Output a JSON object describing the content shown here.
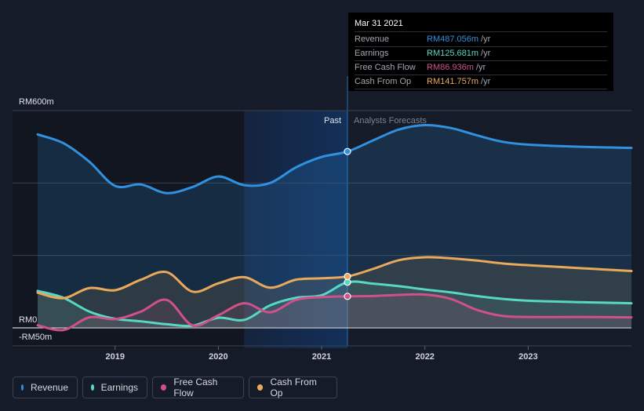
{
  "colors": {
    "background": "#151b28",
    "revenue": "#2f91e0",
    "earnings": "#57d8c2",
    "free_cash_flow": "#d0508a",
    "cash_from_op": "#e8a95a"
  },
  "tooltip": {
    "date": "Mar 31 2021",
    "rows": [
      {
        "label": "Revenue",
        "value": "RM487.056m",
        "unit": "/yr",
        "color": "#2f91e0"
      },
      {
        "label": "Earnings",
        "value": "RM125.681m",
        "unit": "/yr",
        "color": "#57d8c2"
      },
      {
        "label": "Free Cash Flow",
        "value": "RM86.936m",
        "unit": "/yr",
        "color": "#d0508a"
      },
      {
        "label": "Cash From Op",
        "value": "RM141.757m",
        "unit": "/yr",
        "color": "#e8a95a"
      }
    ]
  },
  "labels": {
    "past": "Past",
    "forecast": "Analysts Forecasts"
  },
  "legend": [
    {
      "label": "Revenue",
      "color": "#2f91e0",
      "icon": "revenue-dot"
    },
    {
      "label": "Earnings",
      "color": "#57d8c2",
      "icon": "earnings-dot"
    },
    {
      "label": "Free Cash Flow",
      "color": "#d0508a",
      "icon": "free-cash-flow-dot"
    },
    {
      "label": "Cash From Op",
      "color": "#e8a95a",
      "icon": "cash-from-op-dot"
    }
  ],
  "chart_data": {
    "type": "area",
    "y_unit": "RM m",
    "ylim": [
      -50,
      600
    ],
    "y_tick_labels": [
      {
        "value": 600,
        "label": "RM600m"
      },
      {
        "value": 0,
        "label": "RM0"
      },
      {
        "value": -50,
        "label": "-RM50m"
      }
    ],
    "xlim": [
      2018.25,
      2024.0
    ],
    "x_tick_labels": [
      {
        "value": 2019,
        "label": "2019"
      },
      {
        "value": 2020,
        "label": "2020"
      },
      {
        "value": 2021,
        "label": "2021"
      },
      {
        "value": 2022,
        "label": "2022"
      },
      {
        "value": 2023,
        "label": "2023"
      }
    ],
    "past_end": 2021.25,
    "highlight_start": 2020.25,
    "grid": true,
    "series": [
      {
        "name": "Revenue",
        "color": "#2f91e0",
        "points": [
          [
            2018.25,
            534
          ],
          [
            2018.5,
            510
          ],
          [
            2018.75,
            459
          ],
          [
            2019.0,
            392
          ],
          [
            2019.25,
            396
          ],
          [
            2019.5,
            372
          ],
          [
            2019.75,
            389
          ],
          [
            2020.0,
            418
          ],
          [
            2020.25,
            394
          ],
          [
            2020.5,
            400
          ],
          [
            2020.75,
            443
          ],
          [
            2021.0,
            472
          ],
          [
            2021.25,
            487
          ],
          [
            2021.5,
            518
          ],
          [
            2021.75,
            548
          ],
          [
            2022.0,
            560
          ],
          [
            2022.25,
            552
          ],
          [
            2022.5,
            532
          ],
          [
            2022.75,
            514
          ],
          [
            2023.0,
            506
          ],
          [
            2023.5,
            500
          ],
          [
            2024.0,
            497
          ]
        ]
      },
      {
        "name": "Earnings",
        "color": "#57d8c2",
        "points": [
          [
            2018.25,
            102
          ],
          [
            2018.5,
            83
          ],
          [
            2018.75,
            45
          ],
          [
            2019.0,
            25
          ],
          [
            2019.25,
            18
          ],
          [
            2019.5,
            10
          ],
          [
            2019.75,
            6
          ],
          [
            2020.0,
            28
          ],
          [
            2020.25,
            22
          ],
          [
            2020.5,
            62
          ],
          [
            2020.75,
            83
          ],
          [
            2021.0,
            90
          ],
          [
            2021.25,
            126
          ],
          [
            2021.5,
            122
          ],
          [
            2021.75,
            115
          ],
          [
            2022.0,
            106
          ],
          [
            2022.25,
            98
          ],
          [
            2022.5,
            88
          ],
          [
            2022.75,
            80
          ],
          [
            2023.0,
            75
          ],
          [
            2023.5,
            71
          ],
          [
            2024.0,
            68
          ]
        ]
      },
      {
        "name": "Free Cash Flow",
        "color": "#d0508a",
        "points": [
          [
            2018.25,
            7
          ],
          [
            2018.5,
            -6
          ],
          [
            2018.75,
            29
          ],
          [
            2019.0,
            24
          ],
          [
            2019.25,
            45
          ],
          [
            2019.5,
            77
          ],
          [
            2019.75,
            7
          ],
          [
            2020.0,
            35
          ],
          [
            2020.25,
            68
          ],
          [
            2020.5,
            43
          ],
          [
            2020.75,
            77
          ],
          [
            2021.0,
            85
          ],
          [
            2021.25,
            87
          ],
          [
            2021.5,
            88
          ],
          [
            2021.75,
            91
          ],
          [
            2022.0,
            92
          ],
          [
            2022.25,
            80
          ],
          [
            2022.5,
            50
          ],
          [
            2022.75,
            33
          ],
          [
            2023.0,
            30
          ],
          [
            2023.5,
            30
          ],
          [
            2024.0,
            29
          ]
        ]
      },
      {
        "name": "Cash From Op",
        "color": "#e8a95a",
        "points": [
          [
            2018.25,
            97
          ],
          [
            2018.5,
            82
          ],
          [
            2018.75,
            110
          ],
          [
            2019.0,
            104
          ],
          [
            2019.25,
            133
          ],
          [
            2019.5,
            154
          ],
          [
            2019.75,
            100
          ],
          [
            2020.0,
            123
          ],
          [
            2020.25,
            140
          ],
          [
            2020.5,
            111
          ],
          [
            2020.75,
            133
          ],
          [
            2021.0,
            137
          ],
          [
            2021.25,
            142
          ],
          [
            2021.5,
            163
          ],
          [
            2021.75,
            187
          ],
          [
            2022.0,
            195
          ],
          [
            2022.25,
            192
          ],
          [
            2022.5,
            186
          ],
          [
            2022.75,
            178
          ],
          [
            2023.0,
            173
          ],
          [
            2023.5,
            165
          ],
          [
            2024.0,
            157
          ]
        ]
      }
    ]
  }
}
